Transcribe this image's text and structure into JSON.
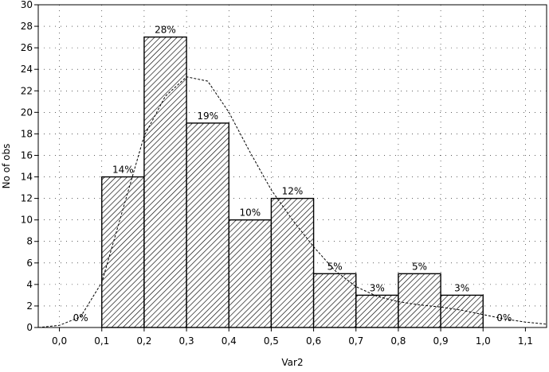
{
  "chart_data": {
    "type": "bar",
    "title": "",
    "xlabel": "Var2",
    "ylabel": "No of obs",
    "xlim": [
      -0.05,
      1.15
    ],
    "ylim": [
      0,
      30
    ],
    "x_ticks": [
      "0,0",
      "0,1",
      "0,2",
      "0,3",
      "0,4",
      "0,5",
      "0,6",
      "0,7",
      "0,8",
      "0,9",
      "1,0",
      "1,1"
    ],
    "y_ticks": [
      "0",
      "2",
      "4",
      "6",
      "8",
      "10",
      "12",
      "14",
      "16",
      "18",
      "20",
      "22",
      "24",
      "26",
      "28",
      "30"
    ],
    "grid": "dotted",
    "bins": [
      {
        "from": 0.0,
        "to": 0.1,
        "value": 0,
        "label": "0%"
      },
      {
        "from": 0.1,
        "to": 0.2,
        "value": 14,
        "label": "14%"
      },
      {
        "from": 0.2,
        "to": 0.3,
        "value": 27,
        "label": "28%"
      },
      {
        "from": 0.3,
        "to": 0.4,
        "value": 19,
        "label": "19%"
      },
      {
        "from": 0.4,
        "to": 0.5,
        "value": 10,
        "label": "10%"
      },
      {
        "from": 0.5,
        "to": 0.6,
        "value": 12,
        "label": "12%"
      },
      {
        "from": 0.6,
        "to": 0.7,
        "value": 5,
        "label": "5%"
      },
      {
        "from": 0.7,
        "to": 0.8,
        "value": 3,
        "label": "3%"
      },
      {
        "from": 0.8,
        "to": 0.9,
        "value": 5,
        "label": "5%"
      },
      {
        "from": 0.9,
        "to": 1.0,
        "value": 3,
        "label": "3%"
      },
      {
        "from": 1.0,
        "to": 1.1,
        "value": 0,
        "label": "0%"
      }
    ],
    "fit_curve": {
      "type": "normal",
      "x": [
        -0.05,
        0.0,
        0.05,
        0.1,
        0.15,
        0.2,
        0.25,
        0.3,
        0.35,
        0.4,
        0.45,
        0.5,
        0.55,
        0.6,
        0.65,
        0.7,
        0.75,
        0.8,
        0.85,
        0.9,
        0.95,
        1.0,
        1.05,
        1.1,
        1.15
      ],
      "y": [
        0.0,
        0.2,
        1.0,
        4.2,
        11.0,
        17.8,
        21.5,
        23.3,
        22.9,
        20.0,
        16.3,
        12.8,
        10.0,
        7.5,
        5.3,
        3.8,
        2.9,
        2.4,
        2.1,
        1.9,
        1.6,
        1.2,
        0.8,
        0.5,
        0.3
      ]
    },
    "colors": {
      "bar_fill": "#ffffff",
      "hatch": "#000000",
      "curve": "#000000",
      "grid": "#000000"
    }
  }
}
